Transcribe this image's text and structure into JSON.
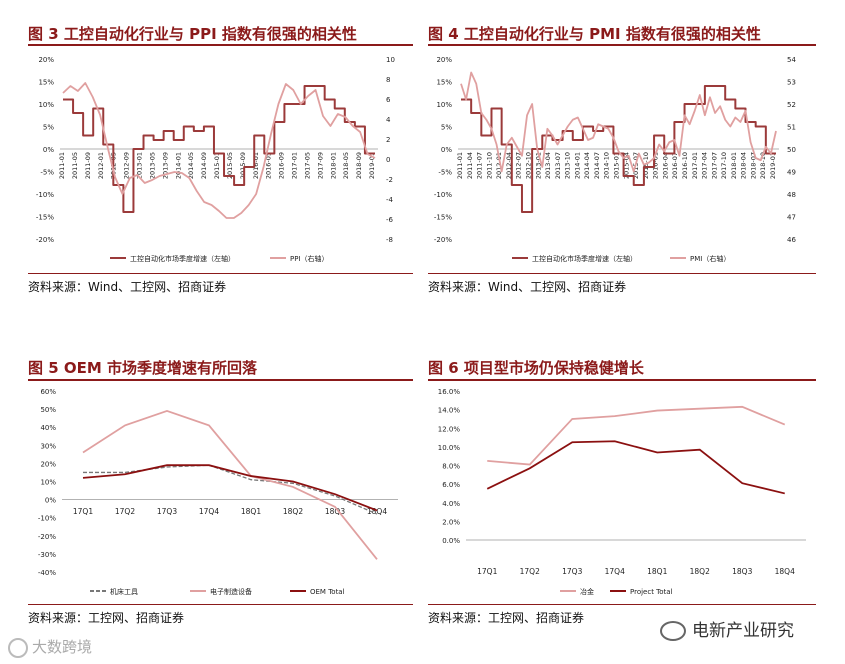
{
  "panels": [
    {
      "title": "图 3  工控自动化行业与 PPI 指数有很强的相关性",
      "source": "资料来源：Wind、工控网、招商证券"
    },
    {
      "title": "图 4 工控自动化行业与 PMI 指数有很强的相关性",
      "source": "资料来源：Wind、工控网、招商证券"
    },
    {
      "title": "图 5 OEM 市场季度增速有所回落",
      "source": "资料来源：工控网、招商证券"
    },
    {
      "title": "图 6  项目型市场仍保持稳健增长",
      "source": "资料来源：工控网、招商证券"
    }
  ],
  "watermarks": {
    "left": "大数跨境",
    "right": "电新产业研究"
  },
  "colors": {
    "dark": "#9b3a3a",
    "light": "#e0a0a0",
    "dash": "#777777",
    "title": "#8b1a1a"
  },
  "chart_data": [
    {
      "type": "line",
      "yticks_left": [
        "20%",
        "15%",
        "10%",
        "5%",
        "0%",
        "-5%",
        "-10%",
        "-15%",
        "-20%"
      ],
      "yticks_right": [
        "10",
        "8",
        "6",
        "4",
        "2",
        "0",
        "-2",
        "-4",
        "-6",
        "-8"
      ],
      "ylim": [
        -20,
        20
      ],
      "ylim_right": [
        -8,
        10
      ],
      "x_labels": [
        "2011-01",
        "2011-05",
        "2011-09",
        "2012-01",
        "2012-05",
        "2012-09",
        "2013-01",
        "2013-05",
        "2013-09",
        "2014-01",
        "2014-05",
        "2014-09",
        "2015-01",
        "2015-05",
        "2015-09",
        "2016-01",
        "2016-05",
        "2016-09",
        "2017-01",
        "2017-05",
        "2017-09",
        "2018-01",
        "2018-05",
        "2018-09",
        "2019-01"
      ],
      "series": [
        {
          "name": "工控自动化市场季度增速（左轴）",
          "axis": "left",
          "style": "step",
          "values": [
            11,
            8,
            3,
            9,
            1,
            -8,
            -14,
            0,
            3,
            2,
            4,
            2,
            5,
            4,
            5,
            -1,
            -6,
            -8,
            -4,
            3,
            -1,
            6,
            10,
            10,
            14,
            14,
            11,
            9,
            6,
            5,
            -1,
            -1
          ]
        },
        {
          "name": "PPI（右轴）",
          "axis": "right",
          "style": "line",
          "values": [
            6.6,
            7.3,
            6.8,
            7.6,
            6.2,
            4.4,
            1.2,
            -1.8,
            -3.5,
            -1.9,
            -1.6,
            -2.4,
            -2.1,
            -1.7,
            -1.5,
            -1.3,
            -1.4,
            -1.9,
            -3.2,
            -4.3,
            -4.6,
            -5.2,
            -5.9,
            -5.9,
            -5.4,
            -4.6,
            -3.5,
            -0.8,
            2.5,
            5.5,
            7.5,
            6.9,
            5.5,
            6.3,
            6.9,
            4.3,
            3.3,
            4.5,
            4.2,
            3.3,
            2.7,
            0.5,
            0.1
          ]
        }
      ]
    },
    {
      "type": "line",
      "yticks_left": [
        "20%",
        "15%",
        "10%",
        "5%",
        "0%",
        "-5%",
        "-10%",
        "-15%",
        "-20%"
      ],
      "yticks_right": [
        "54",
        "53",
        "52",
        "51",
        "50",
        "49",
        "48",
        "47",
        "46"
      ],
      "ylim": [
        -20,
        20
      ],
      "ylim_right": [
        46,
        54
      ],
      "x_labels": [
        "2011-01",
        "2011-04",
        "2011-07",
        "2011-10",
        "2012-01",
        "2012-04",
        "2012-07",
        "2012-10",
        "2013-01",
        "2013-04",
        "2013-07",
        "2013-10",
        "2014-01",
        "2014-04",
        "2014-07",
        "2014-10",
        "2015-01",
        "2015-04",
        "2015-07",
        "2015-10",
        "2016-01",
        "2016-04",
        "2016-07",
        "2016-10",
        "2017-01",
        "2017-04",
        "2017-07",
        "2017-10",
        "2018-01",
        "2018-04",
        "2018-07",
        "2018-10",
        "2019-01"
      ],
      "series": [
        {
          "name": "工控自动化市场季度增速（左轴）",
          "axis": "left",
          "style": "step",
          "values": [
            11,
            8,
            3,
            9,
            1,
            -8,
            -14,
            0,
            3,
            2,
            4,
            2,
            5,
            4,
            5,
            -1,
            -6,
            -8,
            -4,
            3,
            -1,
            6,
            10,
            10,
            14,
            14,
            11,
            9,
            6,
            5,
            -1,
            -1
          ]
        },
        {
          "name": "PMI（右轴）",
          "axis": "right",
          "style": "line",
          "values": [
            52.9,
            52.2,
            53.4,
            52.9,
            51.6,
            51.3,
            50.9,
            50.2,
            49.0,
            50.2,
            50.5,
            50.1,
            49.7,
            51.5,
            52.0,
            50.0,
            49.2,
            50.9,
            50.6,
            50.2,
            50.6,
            51.0,
            51.3,
            51.4,
            50.9,
            50.4,
            50.5,
            51.1,
            51.0,
            50.9,
            50.5,
            49.9,
            49.6,
            49.7,
            49.0,
            49.8,
            49.3,
            49.4,
            49.6,
            50.2,
            49.9,
            50.3,
            50.4,
            49.7,
            51.5,
            51.1,
            51.7,
            52.4,
            51.5,
            52.3,
            51.6,
            51.9,
            51.3,
            51.0,
            51.4,
            51.2,
            51.7,
            50.3,
            49.6,
            49.5,
            50.1,
            49.8,
            50.8
          ]
        }
      ]
    },
    {
      "type": "line",
      "categories": [
        "17Q1",
        "17Q2",
        "17Q3",
        "17Q4",
        "18Q1",
        "18Q2",
        "18Q3",
        "18Q4"
      ],
      "yticks": [
        "60%",
        "50%",
        "40%",
        "30%",
        "20%",
        "10%",
        "0%",
        "-10%",
        "-20%",
        "-30%",
        "-40%"
      ],
      "ylim": [
        -40,
        60
      ],
      "series": [
        {
          "name": "机床工具",
          "style": "dash",
          "values": [
            15,
            15,
            18,
            19,
            11,
            9,
            2,
            -8
          ]
        },
        {
          "name": "电子制造设备",
          "style": "light",
          "values": [
            26,
            41,
            49,
            41,
            13,
            7,
            -4,
            -33
          ]
        },
        {
          "name": "OEM Total",
          "style": "dark",
          "values": [
            12,
            14,
            19,
            19,
            13,
            10,
            3,
            -6
          ]
        }
      ]
    },
    {
      "type": "line",
      "categories": [
        "17Q1",
        "17Q2",
        "17Q3",
        "17Q4",
        "18Q1",
        "18Q2",
        "18Q3",
        "18Q4"
      ],
      "yticks": [
        "16.0%",
        "14.0%",
        "12.0%",
        "10.0%",
        "8.0%",
        "6.0%",
        "4.0%",
        "2.0%",
        "0.0%"
      ],
      "ylim": [
        0,
        16
      ],
      "series": [
        {
          "name": "冶金",
          "style": "light",
          "values": [
            8.5,
            8.1,
            13.0,
            13.3,
            13.9,
            14.1,
            14.3,
            12.4
          ]
        },
        {
          "name": "Project Total",
          "style": "dark",
          "values": [
            5.5,
            7.7,
            10.5,
            10.6,
            9.4,
            9.7,
            6.1,
            5.0
          ]
        }
      ]
    }
  ]
}
